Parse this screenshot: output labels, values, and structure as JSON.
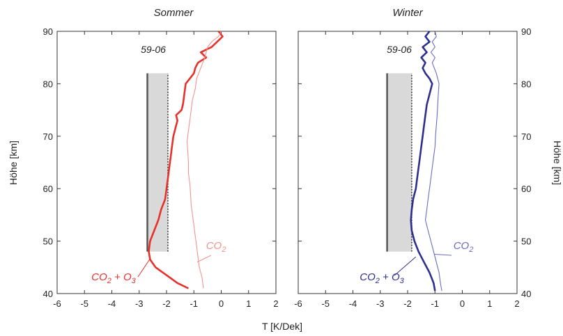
{
  "figure": {
    "xlabel": "T [K/Dek]",
    "ylabel_left": "Höhe [km]",
    "ylabel_right": "Höhe [km]"
  },
  "colors": {
    "summer": "#e8302a",
    "summer_light": "#f4938e",
    "winter": "#2d2f8f",
    "winter_light": "#6a6cc0",
    "band": "#d9d9d9",
    "axis": "#333333"
  },
  "chart_data": [
    {
      "type": "line",
      "title": "Sommer",
      "period_label": "59-06",
      "xlabel": "T [K/Dek]",
      "ylabel": "Höhe [km]",
      "xlim": [
        -6,
        2
      ],
      "ylim": [
        40,
        90
      ],
      "xticks": [
        "-6",
        "-5",
        "-4",
        "-3",
        "-2",
        "-1",
        "0",
        "1",
        "2"
      ],
      "yticks": [
        "40",
        "50",
        "60",
        "70",
        "80",
        "90"
      ],
      "band": {
        "x_from": -2.7,
        "x_to": -1.95,
        "y_from": 48,
        "y_to": 82
      },
      "series": [
        {
          "name": "CO2 + O3",
          "label_main": "CO",
          "label_sub": "2",
          "label_plus": " + O",
          "label_sub2": "3",
          "color": "#e8302a",
          "weight": "thick",
          "points": [
            [
              -1.2,
              41
            ],
            [
              -1.6,
              42
            ],
            [
              -2.0,
              43.5
            ],
            [
              -2.4,
              45
            ],
            [
              -2.6,
              46.5
            ],
            [
              -2.65,
              48
            ],
            [
              -2.6,
              50
            ],
            [
              -2.45,
              52
            ],
            [
              -2.3,
              54
            ],
            [
              -2.2,
              56
            ],
            [
              -2.05,
              58
            ],
            [
              -2.0,
              60
            ],
            [
              -1.95,
              62
            ],
            [
              -1.9,
              64
            ],
            [
              -1.85,
              66
            ],
            [
              -1.8,
              68
            ],
            [
              -1.75,
              70
            ],
            [
              -1.65,
              72
            ],
            [
              -1.6,
              73
            ],
            [
              -1.65,
              74
            ],
            [
              -1.45,
              75
            ],
            [
              -1.4,
              76
            ],
            [
              -1.35,
              78
            ],
            [
              -1.3,
              80
            ],
            [
              -1.15,
              81
            ],
            [
              -1.0,
              82
            ],
            [
              -0.95,
              83
            ],
            [
              -0.85,
              84
            ],
            [
              -0.55,
              85
            ],
            [
              -0.75,
              86
            ],
            [
              -0.35,
              87
            ],
            [
              -0.15,
              88
            ],
            [
              0.05,
              89
            ],
            [
              -0.1,
              90
            ]
          ]
        },
        {
          "name": "CO2",
          "label_main": "CO",
          "label_sub": "2",
          "color": "#f4938e",
          "weight": "thin",
          "points": [
            [
              -0.65,
              41
            ],
            [
              -0.7,
              43
            ],
            [
              -0.8,
              45
            ],
            [
              -0.85,
              47
            ],
            [
              -0.9,
              49
            ],
            [
              -0.95,
              51
            ],
            [
              -1.0,
              53
            ],
            [
              -1.05,
              55
            ],
            [
              -1.1,
              57
            ],
            [
              -1.12,
              59
            ],
            [
              -1.15,
              61
            ],
            [
              -1.2,
              63
            ],
            [
              -1.2,
              65
            ],
            [
              -1.22,
              67
            ],
            [
              -1.25,
              69
            ],
            [
              -1.2,
              71
            ],
            [
              -1.15,
              73
            ],
            [
              -1.1,
              75
            ],
            [
              -1.05,
              77
            ],
            [
              -0.95,
              79
            ],
            [
              -0.9,
              81
            ],
            [
              -0.75,
              83
            ],
            [
              -0.6,
              85
            ],
            [
              -0.5,
              87
            ],
            [
              -0.35,
              88
            ],
            [
              -0.1,
              89
            ],
            [
              0.0,
              90
            ]
          ]
        }
      ]
    },
    {
      "type": "line",
      "title": "Winter",
      "period_label": "59-06",
      "xlabel": "T [K/Dek]",
      "ylabel": "Höhe [km]",
      "xlim": [
        -6,
        2
      ],
      "ylim": [
        40,
        90
      ],
      "xticks": [
        "-6",
        "-5",
        "-4",
        "-3",
        "-2",
        "-1",
        "0",
        "1",
        "2"
      ],
      "yticks": [
        "40",
        "50",
        "60",
        "70",
        "80",
        "90"
      ],
      "band": {
        "x_from": -2.75,
        "x_to": -1.85,
        "y_from": 48,
        "y_to": 82
      },
      "series": [
        {
          "name": "CO2 + O3",
          "label_main": "CO",
          "label_sub": "2",
          "label_plus": " + O",
          "label_sub2": "3",
          "color": "#2d2f8f",
          "weight": "thick",
          "points": [
            [
              -1.0,
              40.5
            ],
            [
              -1.05,
              42
            ],
            [
              -1.2,
              44
            ],
            [
              -1.4,
              46
            ],
            [
              -1.6,
              48
            ],
            [
              -1.75,
              50
            ],
            [
              -1.85,
              52
            ],
            [
              -1.88,
              54
            ],
            [
              -1.85,
              56
            ],
            [
              -1.8,
              58
            ],
            [
              -1.7,
              60
            ],
            [
              -1.65,
              62
            ],
            [
              -1.6,
              64
            ],
            [
              -1.55,
              66
            ],
            [
              -1.5,
              68
            ],
            [
              -1.45,
              70
            ],
            [
              -1.4,
              72
            ],
            [
              -1.35,
              74
            ],
            [
              -1.3,
              76
            ],
            [
              -1.2,
              78
            ],
            [
              -1.1,
              80
            ],
            [
              -1.2,
              81
            ],
            [
              -1.35,
              82
            ],
            [
              -1.45,
              83
            ],
            [
              -1.35,
              84
            ],
            [
              -1.5,
              85
            ],
            [
              -1.3,
              86
            ],
            [
              -1.45,
              87
            ],
            [
              -1.2,
              88
            ],
            [
              -1.35,
              89
            ],
            [
              -1.2,
              90
            ]
          ]
        },
        {
          "name": "CO2",
          "label_main": "CO",
          "label_sub": "2",
          "color": "#6a6cc0",
          "weight": "thin",
          "points": [
            [
              -0.75,
              40.5
            ],
            [
              -0.8,
              42
            ],
            [
              -0.85,
              44
            ],
            [
              -0.95,
              46
            ],
            [
              -1.05,
              48
            ],
            [
              -1.15,
              50
            ],
            [
              -1.25,
              52
            ],
            [
              -1.35,
              54
            ],
            [
              -1.3,
              56
            ],
            [
              -1.25,
              58
            ],
            [
              -1.2,
              60
            ],
            [
              -1.15,
              62
            ],
            [
              -1.1,
              64
            ],
            [
              -1.05,
              66
            ],
            [
              -1.0,
              68
            ],
            [
              -0.98,
              70
            ],
            [
              -0.95,
              72
            ],
            [
              -0.92,
              74
            ],
            [
              -0.9,
              76
            ],
            [
              -0.88,
              78
            ],
            [
              -0.85,
              80
            ],
            [
              -0.95,
              82
            ],
            [
              -1.1,
              84
            ],
            [
              -1.0,
              85
            ],
            [
              -1.15,
              86
            ],
            [
              -1.0,
              87
            ],
            [
              -1.1,
              88
            ],
            [
              -0.95,
              89
            ],
            [
              -1.0,
              90
            ]
          ]
        }
      ]
    }
  ]
}
